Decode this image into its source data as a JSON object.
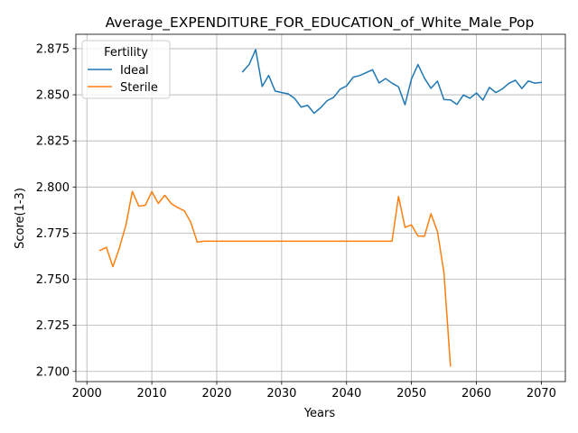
{
  "chart_data": {
    "type": "line",
    "title": "Average_EXPENDITURE_FOR_EDUCATION_of_White_Male_Pop",
    "xlabel": "Years",
    "ylabel": "Score(1-3)",
    "xlim": [
      1998.3,
      2073.7
    ],
    "ylim": [
      2.6945,
      2.8828
    ],
    "xticks": [
      2000,
      2010,
      2020,
      2030,
      2040,
      2050,
      2060,
      2070
    ],
    "yticks": [
      2.7,
      2.725,
      2.75,
      2.775,
      2.8,
      2.825,
      2.85,
      2.875
    ],
    "grid": true,
    "legend": {
      "title": "Fertility",
      "placement": "top-left"
    },
    "series": [
      {
        "name": "Ideal",
        "color": "#1f77b4",
        "x": [
          2024,
          2025,
          2026,
          2027,
          2028,
          2029,
          2030,
          2031,
          2032,
          2033,
          2034,
          2035,
          2036,
          2037,
          2038,
          2039,
          2040,
          2041,
          2042,
          2043,
          2044,
          2045,
          2046,
          2047,
          2048,
          2049,
          2050,
          2051,
          2052,
          2053,
          2054,
          2055,
          2056,
          2057,
          2058,
          2059,
          2060,
          2061,
          2062,
          2063,
          2064,
          2065,
          2066,
          2067,
          2068,
          2069,
          2070
        ],
        "y": [
          2.8625,
          2.8665,
          2.8745,
          2.8545,
          2.8605,
          2.852,
          2.8512,
          2.8505,
          2.848,
          2.8433,
          2.8443,
          2.84,
          2.843,
          2.8468,
          2.8486,
          2.853,
          2.8548,
          2.8595,
          2.8604,
          2.862,
          2.8636,
          2.8564,
          2.8588,
          2.8563,
          2.8543,
          2.8446,
          2.8586,
          2.8664,
          2.859,
          2.8535,
          2.8574,
          2.8474,
          2.8472,
          2.8448,
          2.8499,
          2.8481,
          2.851,
          2.8471,
          2.854,
          2.8512,
          2.8532,
          2.8562,
          2.8579,
          2.8534,
          2.8575,
          2.8563,
          2.8567
        ]
      },
      {
        "name": "Sterile",
        "color": "#ff7f0e",
        "x": [
          2002,
          2003,
          2004,
          2005,
          2006,
          2007,
          2008,
          2009,
          2010,
          2011,
          2012,
          2013,
          2014,
          2015,
          2016,
          2017,
          2018,
          2019,
          2020,
          2021,
          2022,
          2023,
          2024,
          2025,
          2026,
          2027,
          2028,
          2029,
          2030,
          2031,
          2032,
          2033,
          2034,
          2035,
          2036,
          2037,
          2038,
          2039,
          2040,
          2041,
          2042,
          2043,
          2044,
          2045,
          2046,
          2047,
          2048,
          2049,
          2050,
          2051,
          2052,
          2053,
          2054,
          2055,
          2056
        ],
        "y": [
          2.7656,
          2.7673,
          2.7568,
          2.7669,
          2.7792,
          2.7976,
          2.7896,
          2.7901,
          2.7975,
          2.7911,
          2.7955,
          2.791,
          2.7888,
          2.7871,
          2.7809,
          2.7701,
          2.7706,
          2.7706,
          2.7706,
          2.7706,
          2.7706,
          2.7706,
          2.7706,
          2.7706,
          2.7706,
          2.7706,
          2.7706,
          2.7706,
          2.7706,
          2.7706,
          2.7706,
          2.7706,
          2.7706,
          2.7706,
          2.7706,
          2.7706,
          2.7706,
          2.7706,
          2.7706,
          2.7706,
          2.7706,
          2.7706,
          2.7706,
          2.7706,
          2.7706,
          2.7706,
          2.7949,
          2.7781,
          2.7795,
          2.7734,
          2.7733,
          2.7855,
          2.7758,
          2.7535,
          2.703
        ]
      }
    ]
  }
}
